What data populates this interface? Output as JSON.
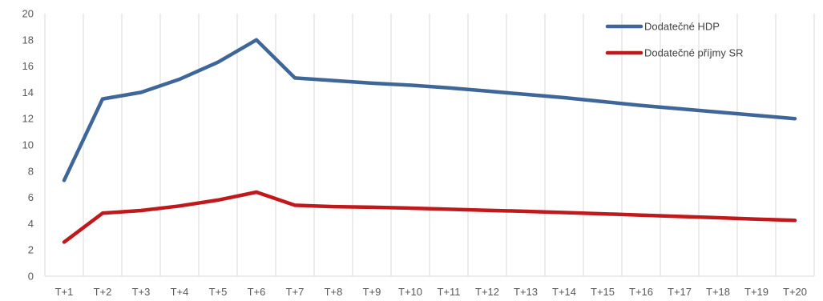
{
  "chart_data": {
    "type": "line",
    "title": "",
    "xlabel": "",
    "ylabel": "",
    "categories": [
      "T+1",
      "T+2",
      "T+3",
      "T+4",
      "T+5",
      "T+6",
      "T+7",
      "T+8",
      "T+9",
      "T+10",
      "T+11",
      "T+12",
      "T+13",
      "T+14",
      "T+15",
      "T+16",
      "T+17",
      "T+18",
      "T+19",
      "T+20"
    ],
    "ylim": [
      0,
      20
    ],
    "yticks": [
      "0",
      "2",
      "4",
      "6",
      "8",
      "10",
      "12",
      "14",
      "16",
      "18",
      "20"
    ],
    "grid": "vertical",
    "legend_position": "top-right",
    "series": [
      {
        "name": "Dodatečné HDP",
        "color": "#3E6698",
        "values": [
          7.3,
          13.5,
          14.0,
          15.0,
          16.3,
          18.0,
          15.1,
          14.9,
          14.7,
          14.55,
          14.35,
          14.1,
          13.85,
          13.6,
          13.3,
          13.0,
          12.75,
          12.5,
          12.25,
          12.0
        ]
      },
      {
        "name": "Dodatečné příjmy SR",
        "color": "#C0191C",
        "values": [
          2.6,
          4.8,
          5.0,
          5.35,
          5.8,
          6.4,
          5.4,
          5.3,
          5.25,
          5.18,
          5.1,
          5.02,
          4.94,
          4.85,
          4.75,
          4.65,
          4.55,
          4.45,
          4.35,
          4.25
        ]
      }
    ]
  }
}
